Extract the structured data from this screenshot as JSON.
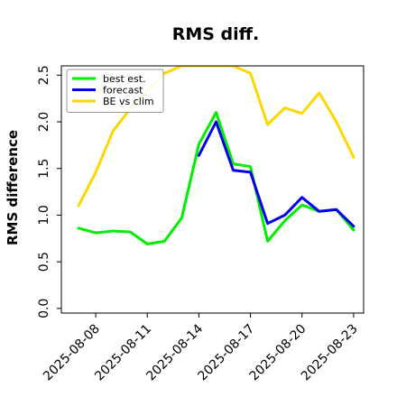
{
  "chart_data": {
    "type": "line",
    "title": "RMS diff.",
    "xlabel": "",
    "ylabel": "RMS difference",
    "x": [
      "2025-08-07",
      "2025-08-08",
      "2025-08-09",
      "2025-08-10",
      "2025-08-11",
      "2025-08-12",
      "2025-08-13",
      "2025-08-14",
      "2025-08-15",
      "2025-08-16",
      "2025-08-17",
      "2025-08-18",
      "2025-08-19",
      "2025-08-20",
      "2025-08-21",
      "2025-08-22",
      "2025-08-23"
    ],
    "xlim": [
      "2025-08-06",
      "2025-08-23 14:00"
    ],
    "xticks": [
      "2025-08-08",
      "2025-08-11",
      "2025-08-14",
      "2025-08-17",
      "2025-08-20",
      "2025-08-23"
    ],
    "highlight_tick": "2025-08-14",
    "highlight_color": "#228B22",
    "ylim": [
      -0.05,
      2.6
    ],
    "yticks": [
      "0.0",
      "0.5",
      "1.0",
      "1.5",
      "2.0",
      "2.5"
    ],
    "grid": false,
    "legend_position": "top-left",
    "series": [
      {
        "name": "best est.",
        "color": "#00ee00",
        "values": [
          0.86,
          0.81,
          0.83,
          0.82,
          0.69,
          0.72,
          0.97,
          1.76,
          2.1,
          1.55,
          1.52,
          0.72,
          0.94,
          1.11,
          1.04,
          1.06,
          0.84
        ]
      },
      {
        "name": "forecast",
        "color": "#0000ee",
        "values": [
          null,
          null,
          null,
          null,
          null,
          null,
          null,
          1.64,
          2.0,
          1.48,
          1.46,
          0.91,
          1.0,
          1.19,
          1.04,
          1.06,
          0.88
        ]
      },
      {
        "name": "BE vs clim",
        "color": "#ffd700",
        "values": [
          1.1,
          1.46,
          1.9,
          2.14,
          2.33,
          2.52,
          2.6,
          2.6,
          2.6,
          2.6,
          2.52,
          1.97,
          2.15,
          2.09,
          2.31,
          2.0,
          1.62
        ]
      }
    ]
  }
}
